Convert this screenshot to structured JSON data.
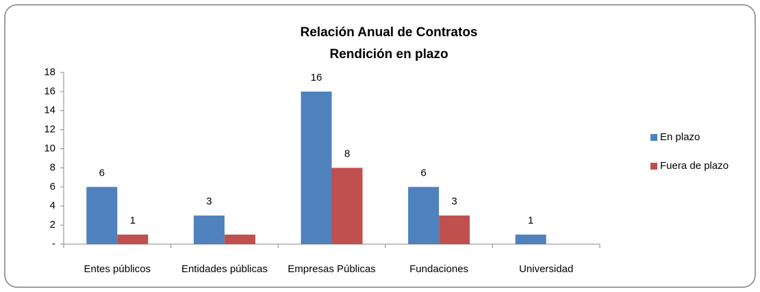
{
  "chart_data": {
    "type": "bar",
    "title": [
      "Relación Anual de Contratos",
      "Rendición en plazo"
    ],
    "categories": [
      "Entes públicos",
      "Entidades públicas",
      "Empresas Públicas",
      "Fundaciones",
      "Universidad"
    ],
    "series": [
      {
        "name": "En plazo",
        "color": "#4f81bd",
        "values": [
          6,
          3,
          16,
          6,
          1
        ],
        "value_labels": [
          "6",
          "3",
          "16",
          "6",
          "1"
        ]
      },
      {
        "name": "Fuera de plazo",
        "color": "#c0504d",
        "values": [
          1,
          1,
          8,
          3,
          0
        ],
        "value_labels": [
          "1",
          null,
          "8",
          "3",
          null
        ]
      }
    ],
    "ylim": [
      0,
      18
    ],
    "yticks": [
      {
        "value": 0,
        "label": "-"
      },
      2,
      4,
      6,
      8,
      10,
      12,
      14,
      16,
      18
    ],
    "grid": false,
    "legend": "right"
  }
}
